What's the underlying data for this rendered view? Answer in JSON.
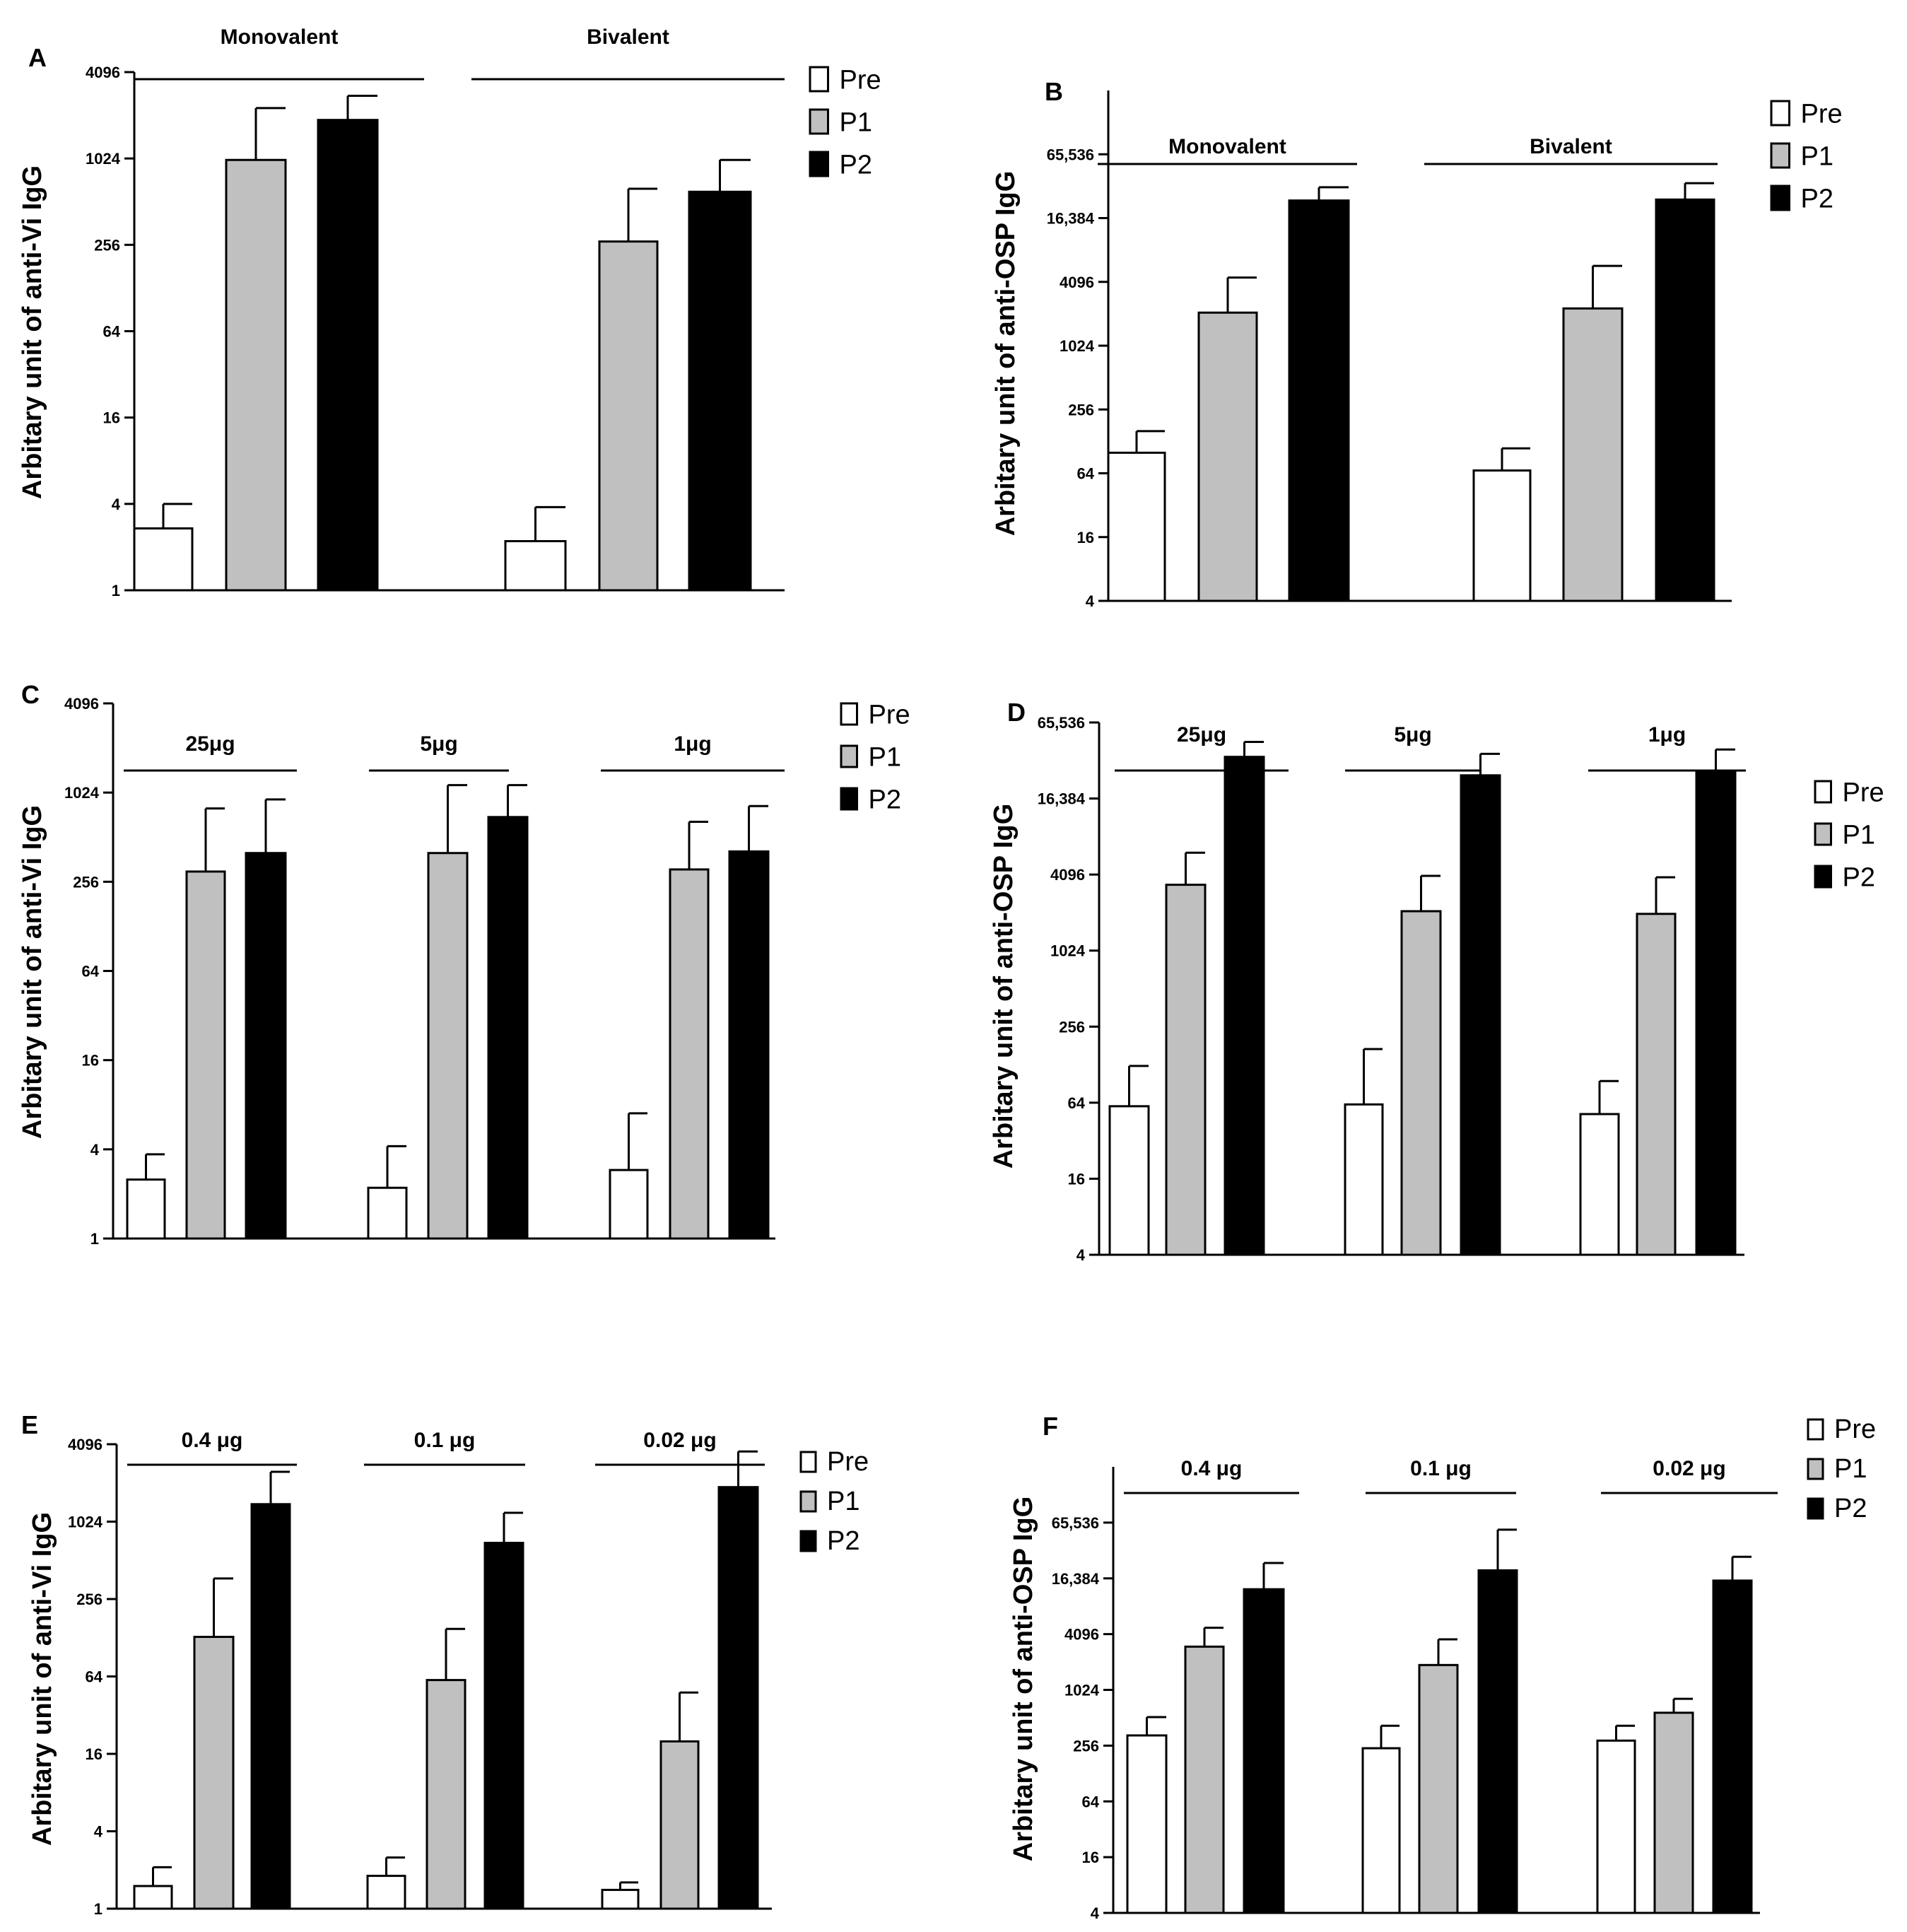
{
  "legend": [
    "Pre",
    "P1",
    "P2"
  ],
  "series_colors": {
    "Pre": "#ffffff",
    "P1": "#c0c0c0",
    "P2": "#000000"
  },
  "chart_data": [
    {
      "panel": "A",
      "type": "bar",
      "scale": "log2",
      "ylabel": "Arbitary unit of anti-Vi IgG",
      "yticks": [
        "1",
        "4",
        "16",
        "64",
        "256",
        "1024",
        "4096"
      ],
      "ylim": [
        1,
        4096
      ],
      "groups": [
        "Monovalent",
        "Bivalent"
      ],
      "series": [
        {
          "name": "Pre",
          "values": [
            2.7,
            2.2
          ],
          "errors": [
            4.0,
            3.8
          ]
        },
        {
          "name": "P1",
          "values": [
            1000,
            270
          ],
          "errors": [
            2300,
            630
          ]
        },
        {
          "name": "P2",
          "values": [
            1900,
            600
          ],
          "errors": [
            2800,
            1000
          ]
        }
      ]
    },
    {
      "panel": "B",
      "type": "bar",
      "scale": "log2",
      "ylabel": "Arbitary unit of anti-OSP IgG",
      "yticks": [
        "4",
        "16",
        "64",
        "256",
        "1024",
        "4096",
        "16,384",
        "65,536"
      ],
      "ylim": [
        4,
        262144
      ],
      "groups": [
        "Monovalent",
        "Bivalent"
      ],
      "series": [
        {
          "name": "Pre",
          "values": [
            100,
            68
          ],
          "errors": [
            160,
            110
          ]
        },
        {
          "name": "P1",
          "values": [
            2100,
            2300
          ],
          "errors": [
            4500,
            5800
          ]
        },
        {
          "name": "P2",
          "values": [
            24000,
            24500
          ],
          "errors": [
            32000,
            35000
          ]
        }
      ]
    },
    {
      "panel": "C",
      "type": "bar",
      "scale": "log2",
      "ylabel": "Arbitary unit of anti-Vi IgG",
      "yticks": [
        "1",
        "4",
        "16",
        "64",
        "256",
        "1024",
        "4096"
      ],
      "ylim": [
        1,
        4096
      ],
      "groups": [
        "25μg",
        "5μg",
        "1μg"
      ],
      "series": [
        {
          "name": "Pre",
          "values": [
            2.5,
            2.2,
            2.9
          ],
          "errors": [
            3.7,
            4.2,
            7.0
          ]
        },
        {
          "name": "P1",
          "values": [
            300,
            400,
            310
          ],
          "errors": [
            800,
            1150,
            650
          ]
        },
        {
          "name": "P2",
          "values": [
            400,
            700,
            410
          ],
          "errors": [
            920,
            1150,
            830
          ]
        }
      ]
    },
    {
      "panel": "D",
      "type": "bar",
      "scale": "log2",
      "ylabel": "Arbitary unit of anti-OSP IgG",
      "yticks": [
        "4",
        "16",
        "64",
        "256",
        "1024",
        "4096",
        "16,384",
        "65,536"
      ],
      "ylim": [
        4,
        65536
      ],
      "groups": [
        "25μg",
        "5μg",
        "1μg"
      ],
      "series": [
        {
          "name": "Pre",
          "values": [
            60,
            62,
            52
          ],
          "errors": [
            125,
            170,
            95
          ]
        },
        {
          "name": "P1",
          "values": [
            3400,
            2100,
            2000
          ],
          "errors": [
            6100,
            4000,
            3900
          ]
        },
        {
          "name": "P2",
          "values": [
            35000,
            25000,
            27000
          ],
          "errors": [
            46000,
            37000,
            40000
          ]
        }
      ]
    },
    {
      "panel": "E",
      "type": "bar",
      "scale": "log2",
      "ylabel": "Arbitary unit of anti-Vi IgG",
      "yticks": [
        "1",
        "4",
        "16",
        "64",
        "256",
        "1024",
        "4096"
      ],
      "ylim": [
        1,
        4096
      ],
      "groups": [
        "0.4 μg",
        "0.1 μg",
        "0.02 μg"
      ],
      "series": [
        {
          "name": "Pre",
          "values": [
            1.5,
            1.8,
            1.4
          ],
          "errors": [
            2.1,
            2.5,
            1.6
          ]
        },
        {
          "name": "P1",
          "values": [
            130,
            60,
            20
          ],
          "errors": [
            370,
            150,
            48
          ]
        },
        {
          "name": "P2",
          "values": [
            1400,
            700,
            1900
          ],
          "errors": [
            2500,
            1200,
            3600
          ]
        }
      ]
    },
    {
      "panel": "F",
      "type": "bar",
      "scale": "log2",
      "ylabel": "Arbitary unit of anti-OSP IgG",
      "yticks": [
        "4",
        "16",
        "64",
        "256",
        "1024",
        "4096",
        "16,384",
        "65,536"
      ],
      "ylim": [
        4,
        262144
      ],
      "groups": [
        "0.4 μg",
        "0.1 μg",
        "0.02 μg"
      ],
      "series": [
        {
          "name": "Pre",
          "values": [
            330,
            240,
            290
          ],
          "errors": [
            520,
            420,
            420
          ]
        },
        {
          "name": "P1",
          "values": [
            3000,
            1900,
            580
          ],
          "errors": [
            4800,
            3600,
            820
          ]
        },
        {
          "name": "P2",
          "values": [
            12500,
            20000,
            15500
          ],
          "errors": [
            24000,
            55000,
            28000
          ]
        }
      ]
    }
  ]
}
